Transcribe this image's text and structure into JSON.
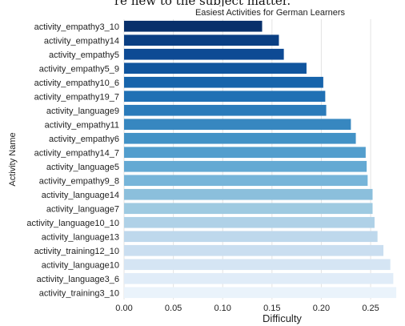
{
  "top_clipped_text": "re new to the subject matter.",
  "chart_data": {
    "type": "bar",
    "orientation": "horizontal",
    "title": "Easiest Activities for German Learners",
    "xlabel": "Difficulty",
    "ylabel": "Activity Name",
    "xlim": [
      0,
      0.28
    ],
    "xticks": [
      "0.00",
      "0.05",
      "0.10",
      "0.15",
      "0.20",
      "0.25"
    ],
    "grid": true,
    "categories": [
      "activity_empathy3_10",
      "activity_empathy14",
      "activity_empathy5",
      "activity_empathy5_9",
      "activity_empathy10_6",
      "activity_empathy19_7",
      "activity_language9",
      "activity_empathy11",
      "activity_empathy6",
      "activity_empathy14_7",
      "activity_language5",
      "activity_empathy9_8",
      "activity_language14",
      "activity_language7",
      "activity_language10_10",
      "activity_language13",
      "activity_training12_10",
      "activity_language10",
      "activity_language3_6",
      "activity_training3_10"
    ],
    "values": [
      0.14,
      0.157,
      0.162,
      0.185,
      0.202,
      0.204,
      0.205,
      0.23,
      0.235,
      0.245,
      0.246,
      0.247,
      0.252,
      0.252,
      0.254,
      0.257,
      0.263,
      0.27,
      0.273,
      0.276
    ],
    "colors": [
      "#08306b",
      "#0a3f83",
      "#0d4a94",
      "#10559e",
      "#1764ab",
      "#2070b4",
      "#2b7bba",
      "#3787c0",
      "#4292c6",
      "#539ecd",
      "#64a9d3",
      "#77b5d9",
      "#8bbfdc",
      "#9ecae1",
      "#afd1e7",
      "#bed8ec",
      "#cadef0",
      "#d5e5f4",
      "#e0ecf8",
      "#eaf3fb"
    ]
  }
}
